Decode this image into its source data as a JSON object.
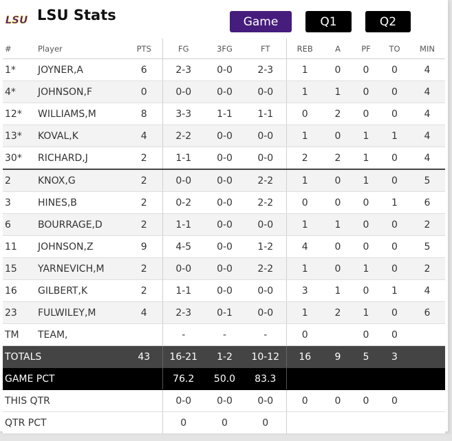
{
  "header": {
    "logo_text": "LSU",
    "title": "LSU Stats",
    "buttons": [
      "Game",
      "Q1",
      "Q2"
    ],
    "active_button": "Game"
  },
  "colors": {
    "accent": "#461d7c",
    "logo_purple": "#461d7c",
    "logo_gold": "#fdd023",
    "totals_bg": "#444444",
    "pct_bg": "#000000"
  },
  "columns": [
    "#",
    "Player",
    "PTS",
    "FG",
    "3FG",
    "FT",
    "REB",
    "A",
    "PF",
    "TO",
    "MIN"
  ],
  "rows": [
    [
      "1*",
      "JOYNER,A",
      "6",
      "2-3",
      "0-0",
      "2-3",
      "1",
      "0",
      "0",
      "0",
      "4"
    ],
    [
      "4*",
      "JOHNSON,F",
      "0",
      "0-0",
      "0-0",
      "0-0",
      "1",
      "1",
      "0",
      "0",
      "4"
    ],
    [
      "12*",
      "WILLIAMS,M",
      "8",
      "3-3",
      "1-1",
      "1-1",
      "0",
      "2",
      "0",
      "0",
      "4"
    ],
    [
      "13*",
      "KOVAL,K",
      "4",
      "2-2",
      "0-0",
      "0-0",
      "1",
      "0",
      "1",
      "1",
      "4"
    ],
    [
      "30*",
      "RICHARD,J",
      "2",
      "1-1",
      "0-0",
      "0-0",
      "2",
      "2",
      "1",
      "0",
      "4"
    ],
    [
      "2",
      "KNOX,G",
      "2",
      "0-0",
      "0-0",
      "2-2",
      "1",
      "0",
      "1",
      "0",
      "5"
    ],
    [
      "3",
      "HINES,B",
      "2",
      "0-2",
      "0-0",
      "2-2",
      "0",
      "0",
      "0",
      "1",
      "6"
    ],
    [
      "6",
      "BOURRAGE,D",
      "2",
      "1-1",
      "0-0",
      "0-0",
      "1",
      "1",
      "0",
      "0",
      "2"
    ],
    [
      "11",
      "JOHNSON,Z",
      "9",
      "4-5",
      "0-0",
      "1-2",
      "4",
      "0",
      "0",
      "0",
      "5"
    ],
    [
      "15",
      "YARNEVICH,M",
      "2",
      "0-0",
      "0-0",
      "2-2",
      "1",
      "0",
      "1",
      "0",
      "2"
    ],
    [
      "16",
      "GILBERT,K",
      "2",
      "1-1",
      "0-0",
      "0-0",
      "3",
      "1",
      "0",
      "1",
      "4"
    ],
    [
      "23",
      "FULWILEY,M",
      "4",
      "2-3",
      "0-1",
      "0-0",
      "1",
      "2",
      "1",
      "0",
      "6"
    ],
    [
      "TM",
      "TEAM,",
      "",
      "-",
      "-",
      "-",
      "0",
      "",
      "0",
      "0",
      ""
    ]
  ],
  "totals": {
    "label": "TOTALS",
    "pts": "43",
    "fg": "16-21",
    "fg3": "1-2",
    "ft": "10-12",
    "reb": "16",
    "a": "9",
    "pf": "5",
    "to": "3",
    "min": ""
  },
  "game_pct": {
    "label": "GAME PCT",
    "fg": "76.2",
    "fg3": "50.0",
    "ft": "83.3"
  },
  "this_qtr": {
    "label": "THIS QTR",
    "fg": "0-0",
    "fg3": "0-0",
    "ft": "0-0",
    "reb": "0",
    "a": "0",
    "pf": "0",
    "to": "0"
  },
  "qtr_pct": {
    "label": "QTR PCT",
    "fg": "0",
    "fg3": "0",
    "ft": "0"
  }
}
